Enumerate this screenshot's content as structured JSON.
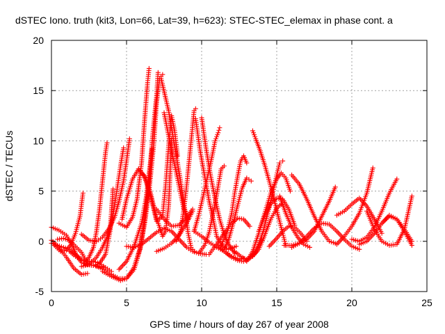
{
  "chart_data": {
    "type": "scatter",
    "title": "dSTEC Iono. truth (kit3, Lon=66, Lat=39, h=623): STEC-STEC_elemax in phase cont. a",
    "xlabel": "GPS time / hours of day 267 of year 2008",
    "ylabel": "dSTEC  / TECUs",
    "xlim": [
      0,
      25
    ],
    "ylim": [
      -5,
      20
    ],
    "xticks": [
      0,
      5,
      10,
      15,
      20,
      25
    ],
    "yticks": [
      -5,
      0,
      5,
      10,
      15,
      20
    ],
    "grid": true,
    "marker": "+",
    "color": "#ff0000",
    "series": [
      {
        "x": [
          0.0,
          0.4,
          0.8,
          1.2,
          1.6,
          2.0
        ],
        "y": [
          -0.2,
          -0.4,
          -0.6,
          -0.8,
          -1.3,
          -1.8
        ]
      },
      {
        "x": [
          0.0,
          0.5,
          1.0,
          1.4,
          1.7,
          2.0,
          2.3,
          2.8,
          3.5
        ],
        "y": [
          1.4,
          1.1,
          0.6,
          -0.5,
          -1.5,
          -2.1,
          -2.3,
          -2.4,
          -2.6
        ]
      },
      {
        "x": [
          0.4,
          0.8,
          1.2,
          1.6,
          2.0,
          2.4
        ],
        "y": [
          0.2,
          0.3,
          0.1,
          -0.5,
          -1.1,
          -2.2
        ]
      },
      {
        "x": [
          0.0,
          0.5,
          1.0,
          1.5,
          2.0,
          2.4
        ],
        "y": [
          0.1,
          -0.6,
          -1.6,
          -2.7,
          -3.3,
          -3.2
        ]
      },
      {
        "x": [
          0.2,
          0.6,
          1.0,
          1.3,
          1.6,
          1.9,
          2.1
        ],
        "y": [
          -0.4,
          -1.0,
          -0.9,
          -0.3,
          0.8,
          2.5,
          4.8
        ]
      },
      {
        "x": [
          1.2,
          1.6,
          2.0,
          2.4,
          2.8,
          3.2,
          3.6,
          4.0
        ],
        "y": [
          -1.0,
          -1.5,
          -1.9,
          -2.0,
          -2.0,
          -2.2,
          -2.6,
          -3.0
        ]
      },
      {
        "x": [
          2.2,
          2.5,
          2.8,
          3.0,
          3.2,
          3.4,
          3.6,
          3.7
        ],
        "y": [
          -2.2,
          -1.6,
          -0.6,
          1.0,
          3.2,
          6.0,
          8.8,
          9.8
        ]
      },
      {
        "x": [
          2.0,
          2.5,
          3.0,
          3.4,
          3.7,
          4.0,
          4.2,
          4.4,
          4.6,
          4.8
        ],
        "y": [
          -2.5,
          -2.3,
          -1.6,
          -0.6,
          0.4,
          1.8,
          3.5,
          5.5,
          7.5,
          9.3
        ]
      },
      {
        "x": [
          2.0,
          2.5,
          3.0,
          3.4,
          3.8,
          4.2,
          4.5,
          4.8,
          5.0,
          5.2
        ],
        "y": [
          0.7,
          0.1,
          0.0,
          0.4,
          1.2,
          2.4,
          4.0,
          6.0,
          8.0,
          10.2
        ]
      },
      {
        "x": [
          2.3,
          2.8,
          3.2,
          3.6,
          3.9,
          4.1
        ],
        "y": [
          -2.3,
          -2.4,
          -2.2,
          -1.3,
          1.0,
          5.2
        ]
      },
      {
        "x": [
          3.0,
          3.5,
          4.0,
          4.5,
          5.0,
          5.5,
          5.9,
          6.2,
          6.5,
          6.7
        ],
        "y": [
          -2.5,
          -2.8,
          -3.3,
          -3.7,
          -3.7,
          -2.8,
          -0.8,
          2.2,
          6.0,
          9.2
        ]
      },
      {
        "x": [
          3.4,
          4.0,
          4.6,
          5.0,
          5.5,
          5.9,
          6.2,
          6.5,
          6.8,
          7.0,
          7.2,
          7.4
        ],
        "y": [
          -3.0,
          -3.5,
          -3.9,
          -3.7,
          -2.6,
          -0.7,
          1.7,
          5.0,
          9.5,
          13.8,
          16.2,
          16.6
        ]
      },
      {
        "x": [
          4.5,
          5.0,
          5.4,
          5.7,
          6.0,
          6.2,
          6.4,
          6.5
        ],
        "y": [
          1.8,
          1.4,
          2.4,
          4.2,
          7.8,
          12.0,
          15.8,
          17.2
        ]
      },
      {
        "x": [
          4.5,
          5.0,
          5.5,
          6.0,
          6.3,
          6.6,
          6.8,
          7.0,
          7.1
        ],
        "y": [
          -2.8,
          -2.0,
          -0.5,
          1.8,
          4.3,
          8.0,
          11.5,
          14.5,
          16.8
        ]
      },
      {
        "x": [
          4.7,
          5.0,
          5.4,
          5.8,
          6.2,
          6.6,
          7.0,
          7.4,
          7.6,
          7.8,
          8.0
        ],
        "y": [
          2.2,
          4.2,
          6.2,
          7.2,
          6.5,
          4.8,
          2.3,
          0.5,
          1.0,
          3.5,
          10.2
        ]
      },
      {
        "x": [
          5.8,
          6.2,
          6.6,
          7.0,
          7.4,
          7.6,
          7.8,
          8.0,
          8.2,
          8.4
        ],
        "y": [
          7.2,
          6.4,
          4.5,
          2.0,
          2.5,
          5.5,
          9.5,
          12.5,
          11.0,
          8.5
        ]
      },
      {
        "x": [
          5.0,
          5.5,
          6.0,
          6.5,
          7.0,
          7.5,
          8.0,
          8.5,
          9.0,
          9.4,
          9.8,
          10.3
        ],
        "y": [
          -0.5,
          -0.6,
          -0.3,
          0.3,
          0.9,
          1.3,
          1.0,
          0.2,
          -0.6,
          -1.0,
          -1.2,
          -1.3
        ]
      },
      {
        "x": [
          7.0,
          7.5,
          8.0,
          8.5,
          9.0,
          9.4
        ],
        "y": [
          -1.0,
          -0.7,
          -0.2,
          0.6,
          1.8,
          3.0
        ]
      },
      {
        "x": [
          7.0,
          7.5,
          8.0,
          8.5,
          9.0,
          9.4
        ],
        "y": [
          3.2,
          2.2,
          1.5,
          1.6,
          2.4,
          3.2
        ]
      },
      {
        "x": [
          7.3,
          7.8,
          8.2,
          8.6,
          8.9,
          9.1,
          9.3,
          9.5
        ],
        "y": [
          16.2,
          13.0,
          9.5,
          6.0,
          3.0,
          0.8,
          -0.6,
          -1.0
        ]
      },
      {
        "x": [
          7.5,
          8.0,
          8.5,
          8.8,
          9.1
        ],
        "y": [
          12.8,
          9.0,
          5.5,
          3.3,
          2.2
        ]
      },
      {
        "x": [
          8.3,
          8.6,
          8.8,
          9.0,
          9.2,
          9.4,
          9.5,
          9.6
        ],
        "y": [
          0.0,
          1.0,
          3.0,
          5.5,
          8.5,
          11.5,
          13.0,
          13.2
        ]
      },
      {
        "x": [
          9.6,
          9.9,
          10.2,
          10.5,
          10.8,
          11.0,
          11.4,
          11.8,
          12.3
        ],
        "y": [
          12.2,
          9.0,
          6.5,
          4.0,
          2.0,
          0.5,
          -0.5,
          -0.8,
          -0.5
        ]
      },
      {
        "x": [
          10.0,
          10.3,
          10.6,
          10.9,
          11.2,
          11.5,
          11.8,
          12.2
        ],
        "y": [
          12.3,
          9.2,
          6.5,
          4.2,
          2.2,
          0.7,
          -0.3,
          -1.2
        ]
      },
      {
        "x": [
          9.5,
          9.8,
          10.1,
          10.4,
          10.7,
          10.9,
          11.1,
          11.2
        ],
        "y": [
          1.0,
          2.6,
          4.5,
          6.5,
          8.5,
          10.0,
          10.8,
          11.3
        ]
      },
      {
        "x": [
          9.8,
          10.2,
          10.5,
          10.8,
          11.1,
          11.3,
          11.5
        ],
        "y": [
          -1.2,
          -0.4,
          0.9,
          3.0,
          5.5,
          7.2,
          7.5
        ]
      },
      {
        "x": [
          9.5,
          10.0,
          10.5,
          11.0,
          11.5,
          12.0,
          12.5,
          12.8
        ],
        "y": [
          1.0,
          0.5,
          -0.1,
          -0.6,
          -1.0,
          -1.5,
          -1.8,
          -1.7
        ]
      },
      {
        "x": [
          10.5,
          11.0,
          11.5,
          12.0,
          12.4,
          12.8,
          13.2
        ],
        "y": [
          -1.3,
          -0.3,
          0.8,
          1.8,
          2.3,
          2.2,
          1.5
        ]
      },
      {
        "x": [
          11.3,
          11.7,
          12.0,
          12.2,
          12.4,
          12.6,
          12.8,
          13.0
        ],
        "y": [
          -0.4,
          0.9,
          2.8,
          4.8,
          6.5,
          8.0,
          8.5,
          7.8
        ]
      },
      {
        "x": [
          11.5,
          11.8,
          12.1,
          12.4,
          12.7,
          13.0,
          13.3
        ],
        "y": [
          -0.8,
          0.2,
          1.8,
          3.6,
          5.3,
          6.3,
          6.0
        ]
      },
      {
        "x": [
          11.0,
          11.5,
          12.0,
          12.4,
          12.8,
          13.2,
          13.6,
          14.0
        ],
        "y": [
          -0.3,
          -1.0,
          -1.6,
          -1.9,
          -2.0,
          -1.7,
          -1.0,
          0.2
        ]
      },
      {
        "x": [
          12.2,
          12.6,
          13.0,
          13.4,
          13.8,
          14.2,
          14.6,
          15.0,
          15.3
        ],
        "y": [
          -1.0,
          -1.5,
          -1.8,
          -1.5,
          -0.8,
          0.6,
          2.2,
          3.3,
          3.7
        ]
      },
      {
        "x": [
          13.4,
          13.6,
          13.9,
          14.2,
          14.5,
          14.8,
          15.1,
          15.4,
          15.6
        ],
        "y": [
          11.0,
          10.2,
          9.0,
          7.6,
          6.0,
          4.3,
          2.5,
          0.8,
          -0.4
        ]
      },
      {
        "x": [
          13.0,
          13.4,
          13.8,
          14.2,
          14.6,
          15.0,
          15.3,
          15.6,
          15.9
        ],
        "y": [
          -2.0,
          -1.0,
          0.8,
          2.8,
          4.8,
          6.2,
          6.8,
          6.3,
          5.0
        ]
      },
      {
        "x": [
          13.5,
          13.8,
          14.1,
          14.4,
          14.7,
          15.0,
          15.2,
          15.4
        ],
        "y": [
          -1.3,
          -0.3,
          1.0,
          2.8,
          4.6,
          6.6,
          7.8,
          8.0
        ]
      },
      {
        "x": [
          13.8,
          14.2,
          14.6,
          15.0,
          15.4,
          15.8,
          16.2
        ],
        "y": [
          1.0,
          2.5,
          3.8,
          4.3,
          4.2,
          3.2,
          1.6
        ]
      },
      {
        "x": [
          14.5,
          15.0,
          15.4,
          15.8,
          16.2,
          16.6,
          17.0
        ],
        "y": [
          -0.5,
          0.3,
          1.0,
          1.5,
          1.4,
          0.8,
          0.0
        ]
      },
      {
        "x": [
          15.2,
          15.6,
          16.0,
          16.4,
          16.8,
          17.2
        ],
        "y": [
          4.5,
          2.8,
          1.4,
          0.4,
          -0.3,
          -0.6
        ]
      },
      {
        "x": [
          16.0,
          16.5,
          17.0,
          17.5,
          18.0,
          18.5,
          18.9
        ],
        "y": [
          6.6,
          5.7,
          4.2,
          2.5,
          1.0,
          0.0,
          -0.2
        ]
      },
      {
        "x": [
          15.5,
          16.0,
          16.5,
          17.0,
          17.5,
          18.0,
          18.5,
          18.9
        ],
        "y": [
          -0.4,
          -0.4,
          -0.2,
          0.2,
          1.0,
          2.5,
          4.0,
          5.4
        ]
      },
      {
        "x": [
          16.0,
          16.5,
          17.0,
          17.5,
          18.0,
          18.5,
          19.0,
          19.5,
          20.0,
          20.5
        ],
        "y": [
          -0.6,
          -0.2,
          0.5,
          1.3,
          1.8,
          1.7,
          1.0,
          0.2,
          -0.5,
          -0.8
        ]
      },
      {
        "x": [
          19.0,
          19.5,
          20.0,
          20.5,
          21.0,
          21.4
        ],
        "y": [
          -0.3,
          0.5,
          1.5,
          2.8,
          4.8,
          7.3
        ]
      },
      {
        "x": [
          19.0,
          19.5,
          20.0,
          20.5,
          21.0,
          21.5,
          22.0
        ],
        "y": [
          2.6,
          3.0,
          3.7,
          4.3,
          3.5,
          2.2,
          0.8
        ]
      },
      {
        "x": [
          20.0,
          20.5,
          21.0,
          21.5,
          22.0,
          22.5,
          23.0
        ],
        "y": [
          0.2,
          0.0,
          0.4,
          1.4,
          3.0,
          4.8,
          6.2
        ]
      },
      {
        "x": [
          20.5,
          21.0,
          21.5,
          22.0,
          22.5,
          23.0,
          23.5,
          24.0
        ],
        "y": [
          -0.3,
          0.0,
          0.8,
          1.8,
          2.5,
          2.2,
          1.2,
          0.0
        ]
      },
      {
        "x": [
          21.0,
          21.5,
          22.0,
          22.5,
          23.0,
          23.5,
          24.0
        ],
        "y": [
          3.0,
          1.2,
          0.0,
          -0.4,
          -0.3,
          1.2,
          4.5
        ]
      },
      {
        "x": [
          22.0,
          22.5,
          23.0,
          23.5,
          24.0
        ],
        "y": [
          1.8,
          2.6,
          2.2,
          1.0,
          -0.4
        ]
      }
    ]
  }
}
